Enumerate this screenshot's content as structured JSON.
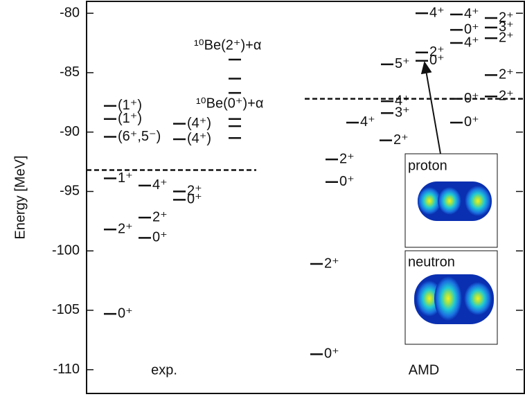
{
  "chart_data": {
    "type": "level-scheme",
    "y_label": "Energy [MeV]",
    "ylim": [
      -112,
      -79
    ],
    "yticks": [
      -80,
      -85,
      -90,
      -95,
      -100,
      -105,
      -110
    ],
    "groups": [
      {
        "label": "exp.",
        "thresholds": [
          -93.2
        ],
        "levels": [
          {
            "energy": -105.3,
            "label": "0⁺"
          },
          {
            "energy": -98.2,
            "label": "2⁺"
          },
          {
            "energy": -98.9,
            "label": "0⁺"
          },
          {
            "energy": -97.2,
            "label": "2⁺"
          },
          {
            "energy": -93.9,
            "label": "1⁺"
          },
          {
            "energy": -94.5,
            "label": "4⁺"
          },
          {
            "energy": -95.0,
            "label": "2⁺"
          },
          {
            "energy": -95.7,
            "label": "0⁺"
          },
          {
            "energy": -90.4,
            "label": "(6⁺,5⁻)"
          },
          {
            "energy": -88.9,
            "label": "(1⁺)"
          },
          {
            "energy": -87.8,
            "label": "(1⁺)"
          },
          {
            "energy": -89.3,
            "label": "(4⁺)"
          },
          {
            "energy": -90.6,
            "label": "(4⁺)"
          },
          {
            "energy": -83.9
          },
          {
            "energy": -85.5
          },
          {
            "energy": -86.7
          },
          {
            "energy": -88.9
          },
          {
            "energy": -89.5
          },
          {
            "energy": -90.5
          }
        ]
      },
      {
        "label": "AMD",
        "thresholds": [
          -87.2
        ],
        "levels": [
          {
            "energy": -108.7,
            "label": "0⁺"
          },
          {
            "energy": -101.1,
            "label": "2⁺"
          },
          {
            "energy": -94.2,
            "label": "0⁺"
          },
          {
            "energy": -92.3,
            "label": "2⁺"
          },
          {
            "energy": -89.2,
            "label": "4⁺"
          },
          {
            "energy": -90.7,
            "label": "2⁺"
          },
          {
            "energy": -88.4,
            "label": "3⁺"
          },
          {
            "energy": -87.4,
            "label": "4⁺"
          },
          {
            "energy": -84.3,
            "label": "5⁺"
          },
          {
            "energy": -83.3,
            "label": "2⁺"
          },
          {
            "energy": -84.0,
            "label": "0⁺"
          },
          {
            "energy": -80.0,
            "label": "4⁺"
          },
          {
            "energy": -80.1,
            "label": "4⁺"
          },
          {
            "energy": -81.4,
            "label": "0⁺"
          },
          {
            "energy": -82.5,
            "label": "4⁺"
          },
          {
            "energy": -89.2,
            "label": "0⁺"
          },
          {
            "energy": -87.2,
            "label": "0⁺"
          },
          {
            "energy": -80.4,
            "label": "2⁺"
          },
          {
            "energy": -81.2,
            "label": "3⁺"
          },
          {
            "energy": -82.1,
            "label": "2⁺"
          },
          {
            "energy": -87.0,
            "label": "2⁺"
          },
          {
            "energy": -85.2,
            "label": "2⁺"
          }
        ]
      }
    ],
    "annotations": [
      "¹⁰Be(2⁺)+α",
      "¹⁰Be(0⁺)+α"
    ],
    "insets": [
      "proton",
      "neutron"
    ]
  }
}
